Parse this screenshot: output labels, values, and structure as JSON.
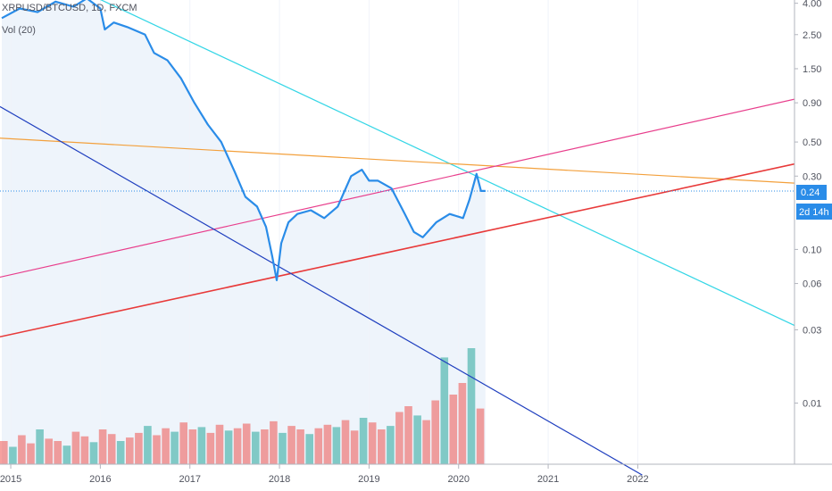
{
  "header": {
    "symbol": "XRPUSD/BTCUSD, 1D, FXCM",
    "volume_label": "Vol (20)"
  },
  "price_badge": {
    "value": "0.24",
    "countdown": "2d 14h"
  },
  "colors": {
    "price_line": "#2a8ce8",
    "cyan_line": "#34d6e6",
    "orange_line": "#f3a03c",
    "pink_line": "#e83e8c",
    "red_line": "#e83a3a",
    "blue_line": "#1f3fbf",
    "badge": "#2a8ce8",
    "vol_up": "#26a69a",
    "vol_down": "#ef5350"
  },
  "chart_data": {
    "type": "line",
    "log_scale": true,
    "y_axis_ticks": [
      "4.00",
      "2.50",
      "1.50",
      "0.90",
      "0.50",
      "0.30",
      "0.10",
      "0.06",
      "0.03",
      "0.01"
    ],
    "x_axis_ticks": [
      "2015",
      "2016",
      "2017",
      "2018",
      "2019",
      "2020",
      "2021",
      "2022"
    ],
    "ylim": [
      0.004,
      4.2
    ],
    "xlim": [
      2014.88,
      2023.75
    ],
    "current_value": 0.24,
    "series": [
      {
        "type": "line",
        "x": [
          2014.9,
          2015.1,
          2015.3,
          2015.5,
          2015.7,
          2015.85,
          2016.0,
          2016.05,
          2016.15,
          2016.3,
          2016.5,
          2016.6,
          2016.75,
          2016.9,
          2017.05,
          2017.2,
          2017.35,
          2017.5,
          2017.62,
          2017.75,
          2017.85,
          2017.92,
          2017.97,
          2018.02,
          2018.1,
          2018.2,
          2018.35,
          2018.5,
          2018.65,
          2018.8,
          2018.92,
          2019.0,
          2019.1,
          2019.25,
          2019.4,
          2019.5,
          2019.6,
          2019.75,
          2019.9,
          2020.05,
          2020.12,
          2020.2,
          2020.25,
          2020.3
        ],
        "values": [
          3.2,
          3.7,
          3.5,
          4.1,
          3.8,
          4.3,
          3.7,
          2.7,
          3.0,
          2.8,
          2.5,
          1.9,
          1.7,
          1.3,
          0.9,
          0.65,
          0.5,
          0.32,
          0.22,
          0.19,
          0.14,
          0.09,
          0.063,
          0.11,
          0.15,
          0.17,
          0.18,
          0.16,
          0.19,
          0.3,
          0.33,
          0.28,
          0.28,
          0.25,
          0.17,
          0.13,
          0.12,
          0.15,
          0.17,
          0.16,
          0.21,
          0.31,
          0.24,
          0.24
        ]
      }
    ],
    "trendlines": [
      {
        "name": "cyan",
        "x": [
          2015.8,
          2023.75
        ],
        "values": [
          4.8,
          0.032
        ]
      },
      {
        "name": "orange",
        "x": [
          2014.88,
          2023.75
        ],
        "values": [
          0.53,
          0.27
        ]
      },
      {
        "name": "pink",
        "x": [
          2014.88,
          2023.75
        ],
        "values": [
          0.066,
          0.95
        ]
      },
      {
        "name": "red",
        "x": [
          2014.88,
          2023.75
        ],
        "values": [
          0.027,
          0.36
        ]
      },
      {
        "name": "blue",
        "x": [
          2014.88,
          2022.05
        ],
        "values": [
          0.85,
          0.0034
        ]
      }
    ],
    "volume": {
      "x_start": 2014.88,
      "x_end": 2020.3,
      "relative_values": [
        0.2,
        0.15,
        0.25,
        0.18,
        0.3,
        0.22,
        0.2,
        0.16,
        0.28,
        0.24,
        0.19,
        0.3,
        0.26,
        0.2,
        0.23,
        0.27,
        0.33,
        0.25,
        0.31,
        0.28,
        0.36,
        0.3,
        0.32,
        0.27,
        0.34,
        0.29,
        0.31,
        0.35,
        0.28,
        0.3,
        0.37,
        0.27,
        0.33,
        0.3,
        0.26,
        0.31,
        0.34,
        0.32,
        0.38,
        0.29,
        0.4,
        0.36,
        0.3,
        0.33,
        0.45,
        0.5,
        0.42,
        0.38,
        0.55,
        0.92,
        0.6,
        0.7,
        1.0,
        0.48
      ]
    }
  }
}
